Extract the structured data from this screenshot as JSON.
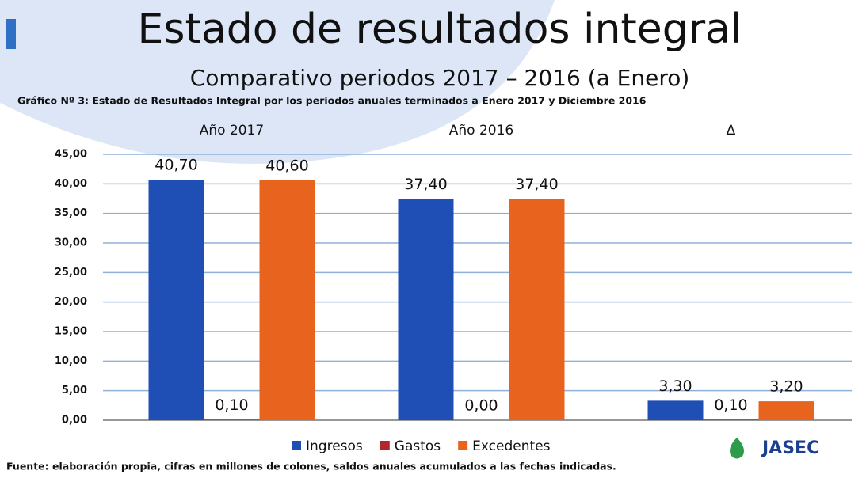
{
  "chart_data": {
    "type": "bar",
    "title": "Estado de resultados integral",
    "subtitle": "Comparativo periodos 2017 – 2016 (a Enero)",
    "caption": "Gráfico Nº 3: Estado de Resultados Integral por los periodos anuales terminados a Enero 2017 y Diciembre 2016",
    "categories": [
      "Año 2017",
      "Año 2016",
      "Δ"
    ],
    "series": [
      {
        "name": "Ingresos",
        "color": "#1f4fb4",
        "values": [
          40.7,
          37.4,
          3.3
        ],
        "value_labels": [
          "40,70",
          "37,40",
          "3,30"
        ]
      },
      {
        "name": "Gastos",
        "color": "#b0282a",
        "values": [
          0.1,
          0,
          0.1
        ],
        "value_labels": [
          "0,10",
          "0,00",
          "0,10"
        ]
      },
      {
        "name": "Excedentes",
        "color": "#e8641e",
        "values": [
          40.6,
          37.4,
          3.2
        ],
        "value_labels": [
          "40,60",
          "37,40",
          "3,20"
        ]
      }
    ],
    "ylim": [
      0,
      45
    ],
    "yticks": [
      {
        "value": 0,
        "label": "0,00"
      },
      {
        "value": 5,
        "label": "5,00"
      },
      {
        "value": 10,
        "label": "10,00"
      },
      {
        "value": 15,
        "label": "15,00"
      },
      {
        "value": 20,
        "label": "20,00"
      },
      {
        "value": 25,
        "label": "25,00"
      },
      {
        "value": 30,
        "label": "30,00"
      },
      {
        "value": 35,
        "label": "35,00"
      },
      {
        "value": 40,
        "label": "40,00"
      },
      {
        "value": 45,
        "label": "45,00"
      }
    ],
    "grid": true,
    "legend": "bottom",
    "source": "Fuente: elaboración propia, cifras en millones de colones, saldos anuales acumulados a las fechas indicadas.",
    "logo": "JASEC"
  }
}
